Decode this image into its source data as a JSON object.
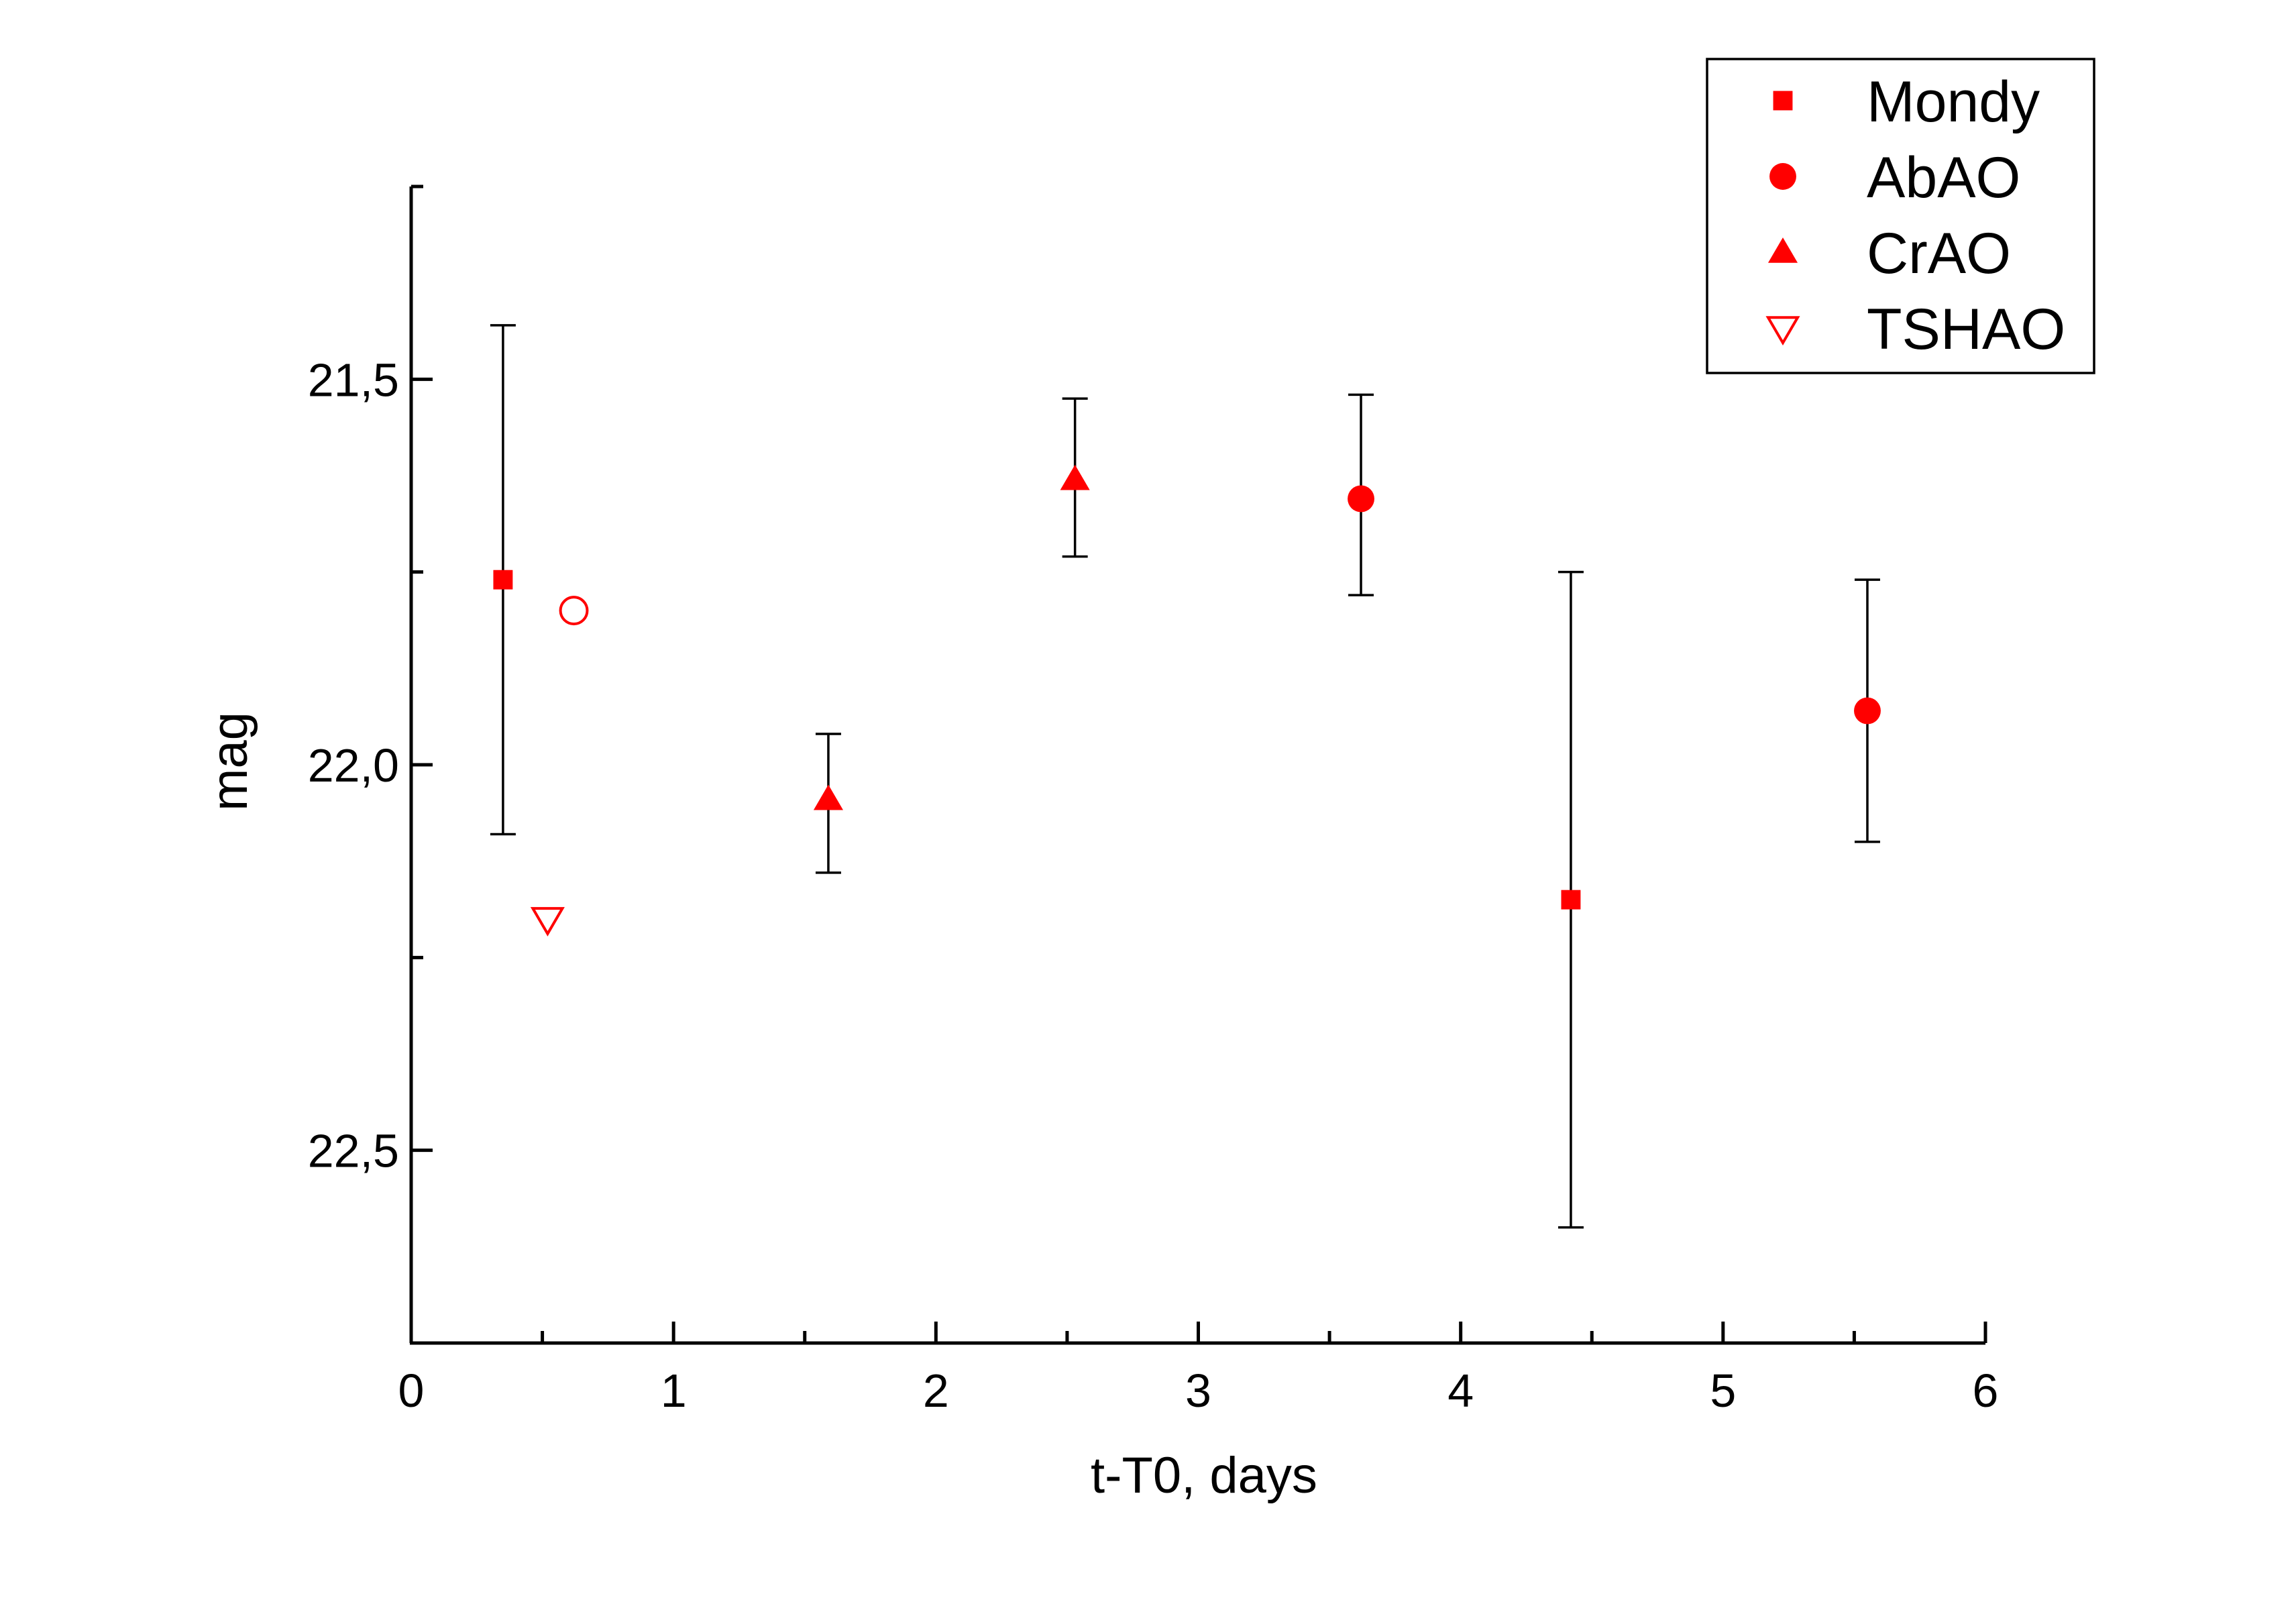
{
  "chart_data": {
    "type": "scatter",
    "xlabel": "t-T0, days",
    "ylabel": "mag",
    "xlim": [
      0,
      6
    ],
    "ylim": [
      22.75,
      21.25
    ],
    "y_inverted": true,
    "x_ticks": [
      {
        "value": 0,
        "label": "0"
      },
      {
        "value": 1,
        "label": "1"
      },
      {
        "value": 2,
        "label": "2"
      },
      {
        "value": 3,
        "label": "3"
      },
      {
        "value": 4,
        "label": "4"
      },
      {
        "value": 5,
        "label": "5"
      },
      {
        "value": 6,
        "label": "6"
      }
    ],
    "y_ticks": [
      {
        "value": 21.5,
        "label": "21,5"
      },
      {
        "value": 22.0,
        "label": "22,0"
      },
      {
        "value": 22.5,
        "label": "22,5"
      }
    ],
    "grid": false,
    "legend_position": "top-right",
    "marker_color": "#ff0000",
    "series": [
      {
        "name": "Mondy",
        "marker": "square",
        "filled": true,
        "points": [
          {
            "x": 0.35,
            "y": 21.76,
            "err_low": 21.43,
            "err_high": 22.09
          },
          {
            "x": 4.42,
            "y": 22.175,
            "err_low": 21.75,
            "err_high": 22.6
          }
        ]
      },
      {
        "name": "AbAO",
        "marker": "circle",
        "filled": true,
        "points": [
          {
            "x": 3.62,
            "y": 21.655,
            "err_low": 21.52,
            "err_high": 21.78
          },
          {
            "x": 5.55,
            "y": 21.93,
            "err_low": 21.76,
            "err_high": 22.1
          }
        ]
      },
      {
        "name": "CrAO",
        "marker": "triangle-up",
        "filled": true,
        "points": [
          {
            "x": 1.59,
            "y": 22.045,
            "err_low": 21.96,
            "err_high": 22.14
          },
          {
            "x": 2.53,
            "y": 21.63,
            "err_low": 21.525,
            "err_high": 21.73
          }
        ]
      },
      {
        "name": "TSHAO",
        "marker": "triangle-down",
        "filled": false,
        "points": [
          {
            "x": 0.52,
            "y": 22.2
          }
        ]
      },
      {
        "marker": "circle",
        "filled": false,
        "points": [
          {
            "x": 0.62,
            "y": 21.8
          }
        ]
      }
    ]
  }
}
